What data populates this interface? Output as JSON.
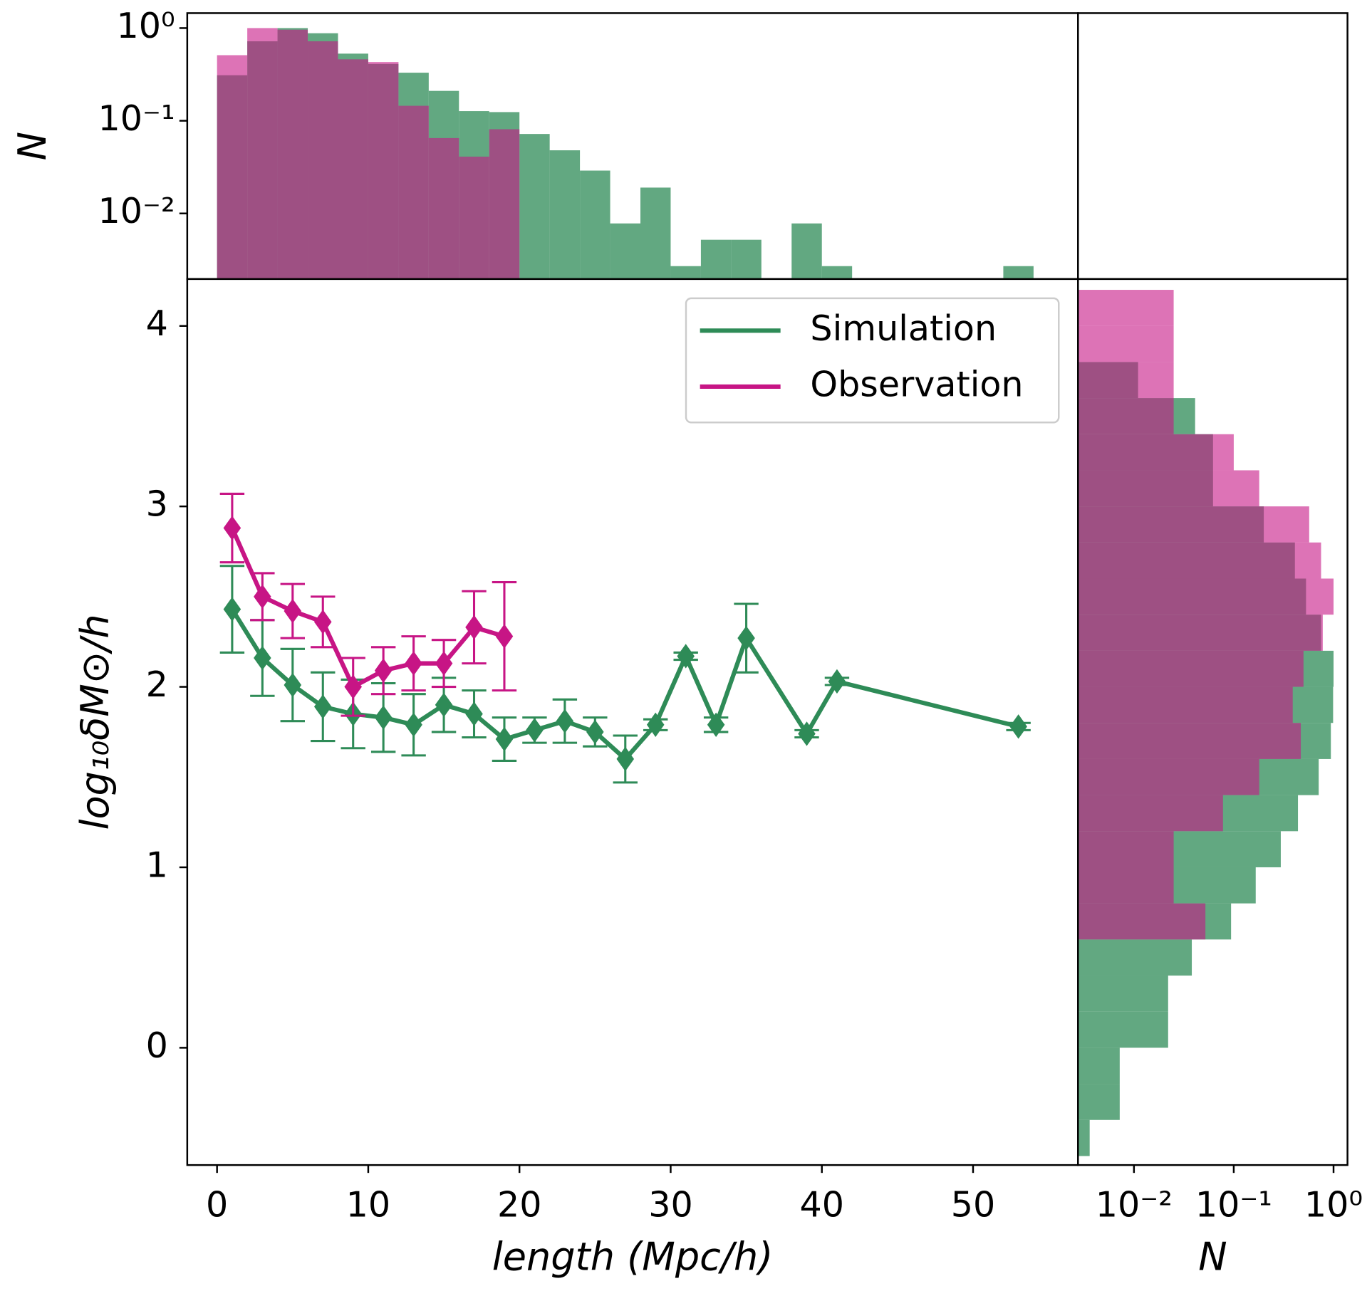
{
  "chart_data": [
    {
      "type": "line",
      "xlabel": "length (Mpc/h)",
      "ylabel": "log₁₀δM⊙/h",
      "xlim": [
        -1.97,
        56.94
      ],
      "ylim": [
        -0.65,
        4.26
      ],
      "xticks": [
        0,
        10,
        20,
        30,
        40,
        50
      ],
      "yticks": [
        0,
        1,
        2,
        3,
        4
      ],
      "legend": "upper right",
      "series": [
        {
          "name": "Simulation",
          "color": "#2e8b57",
          "x": [
            1,
            3,
            5,
            7,
            9,
            11,
            13,
            15,
            17,
            19,
            21,
            23,
            25,
            27,
            29,
            31,
            33,
            35,
            39,
            41,
            53
          ],
          "values": [
            2.43,
            2.16,
            2.01,
            1.89,
            1.85,
            1.83,
            1.79,
            1.9,
            1.85,
            1.71,
            1.76,
            1.81,
            1.75,
            1.6,
            1.79,
            2.17,
            1.79,
            2.27,
            1.74,
            2.03,
            1.78
          ],
          "errors": [
            0.24,
            0.21,
            0.2,
            0.19,
            0.19,
            0.19,
            0.17,
            0.15,
            0.13,
            0.12,
            0.07,
            0.12,
            0.08,
            0.13,
            0.03,
            0.02,
            0.04,
            0.19,
            0.02,
            0.02,
            0.02
          ]
        },
        {
          "name": "Observation",
          "color": "#c71585",
          "x": [
            1,
            3,
            5,
            7,
            9,
            11,
            13,
            15,
            17,
            19
          ],
          "values": [
            2.88,
            2.5,
            2.42,
            2.36,
            2.0,
            2.09,
            2.13,
            2.13,
            2.33,
            2.28
          ],
          "errors": [
            0.19,
            0.13,
            0.15,
            0.14,
            0.16,
            0.13,
            0.15,
            0.13,
            0.2,
            0.3
          ]
        }
      ]
    },
    {
      "type": "histogram",
      "orientation": "vertical",
      "ylabel": "N",
      "log": true,
      "xlim": [
        -1.97,
        56.94
      ],
      "ylim": [
        0.00196,
        1.45
      ],
      "yticks": [
        {
          "value": 1,
          "label": "10⁰"
        },
        {
          "value": 0.1,
          "label": "10⁻¹"
        },
        {
          "value": 0.01,
          "label": "10⁻²"
        }
      ],
      "series": [
        {
          "name": "Simulation",
          "color": "#2e8b57",
          "bins": [
            0,
            2,
            4,
            6,
            8,
            10,
            12,
            14,
            16,
            18,
            20,
            22,
            24,
            26,
            28,
            30,
            32,
            34,
            36,
            38,
            40,
            42,
            44,
            46,
            48,
            50,
            52,
            54
          ],
          "values": [
            0.31,
            0.72,
            1.0,
            0.88,
            0.53,
            0.41,
            0.33,
            0.21,
            0.127,
            0.124,
            0.072,
            0.048,
            0.029,
            0.0078,
            0.019,
            0.0027,
            0.0052,
            0.0052,
            0,
            0.0078,
            0.0027,
            0,
            0,
            0,
            0,
            0,
            0.0027
          ]
        },
        {
          "name": "Observation",
          "color": "#c71585",
          "bins": [
            0,
            2,
            4,
            6,
            8,
            10,
            12,
            14,
            16,
            18,
            20
          ],
          "values": [
            0.51,
            1.0,
            0.96,
            0.72,
            0.46,
            0.43,
            0.145,
            0.065,
            0.041,
            0.081
          ]
        }
      ]
    },
    {
      "type": "histogram",
      "orientation": "horizontal",
      "xlabel": "N",
      "log": true,
      "xlim": [
        0.00275,
        1.38
      ],
      "ylim": [
        -0.65,
        4.26
      ],
      "xticks": [
        {
          "value": 0.01,
          "label": "10⁻²"
        },
        {
          "value": 0.1,
          "label": "10⁻¹"
        },
        {
          "value": 1,
          "label": "10⁰"
        }
      ],
      "series": [
        {
          "name": "Simulation",
          "color": "#2e8b57",
          "bins": [
            -0.6,
            -0.4,
            -0.2,
            0,
            0.2,
            0.4,
            0.6,
            0.8,
            1.0,
            1.2,
            1.4,
            1.6,
            1.8,
            2.0,
            2.2,
            2.4,
            2.6,
            2.8,
            3.0,
            3.2,
            3.4,
            3.6,
            3.8
          ],
          "values": [
            0.0036,
            0.0072,
            0.0072,
            0.022,
            0.022,
            0.038,
            0.094,
            0.166,
            0.296,
            0.44,
            0.71,
            0.94,
            0.99,
            1.0,
            0.75,
            0.53,
            0.41,
            0.2,
            0.062,
            0.062,
            0.041,
            0.011
          ]
        },
        {
          "name": "Observation",
          "color": "#c71585",
          "bins": [
            0.6,
            0.8,
            1.0,
            1.2,
            1.4,
            1.6,
            1.8,
            2.0,
            2.2,
            2.4,
            2.6,
            2.8,
            3.0,
            3.2,
            3.4,
            3.6,
            3.8,
            4.0,
            4.2
          ],
          "values": [
            0.052,
            0.025,
            0.025,
            0.078,
            0.18,
            0.47,
            0.39,
            0.5,
            0.78,
            1.0,
            0.75,
            0.57,
            0.18,
            0.1,
            0.025,
            0.025,
            0.025,
            0.025
          ]
        }
      ]
    }
  ]
}
